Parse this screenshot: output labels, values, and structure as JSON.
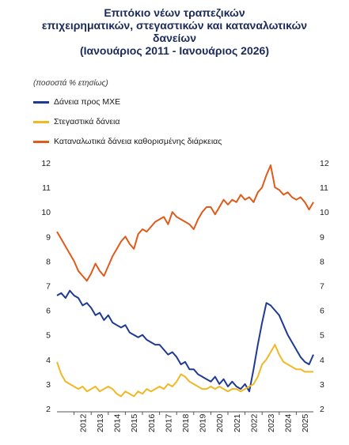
{
  "chart_data": {
    "type": "line",
    "title_lines": [
      "Επιτόκιο νέων τραπεζικών",
      "επιχειρηματικών, στεγαστικών και καταναλωτικών",
      "δανείων",
      "(Ιανουάριος 2011 - Ιανουάριος 2026)"
    ],
    "unit_label": "(ποσοστά % ετησίως)",
    "ylim": [
      2,
      12
    ],
    "yticks": [
      "2",
      "3",
      "4",
      "5",
      "6",
      "7",
      "8",
      "9",
      "10",
      "11",
      "12"
    ],
    "xlim": [
      2011,
      2026
    ],
    "xticks": [
      "2012",
      "2013",
      "2014",
      "2015",
      "2016",
      "2017",
      "2018",
      "2019",
      "2020",
      "2021",
      "2022",
      "2023",
      "2024",
      "2025"
    ],
    "grid": false,
    "legend_position": "top-left",
    "series": [
      {
        "name": "Δάνεια προς ΜΧΕ",
        "color": "#1f3a93",
        "x": [
          2011.0,
          2011.25,
          2011.5,
          2011.75,
          2012.0,
          2012.25,
          2012.5,
          2012.75,
          2013.0,
          2013.25,
          2013.5,
          2013.75,
          2014.0,
          2014.25,
          2014.5,
          2014.75,
          2015.0,
          2015.25,
          2015.5,
          2015.75,
          2016.0,
          2016.25,
          2016.5,
          2016.75,
          2017.0,
          2017.25,
          2017.5,
          2017.75,
          2018.0,
          2018.25,
          2018.5,
          2018.75,
          2019.0,
          2019.25,
          2019.5,
          2019.75,
          2020.0,
          2020.25,
          2020.5,
          2020.75,
          2021.0,
          2021.25,
          2021.5,
          2021.75,
          2022.0,
          2022.25,
          2022.5,
          2022.75,
          2023.0,
          2023.25,
          2023.5,
          2023.75,
          2024.0,
          2024.25,
          2024.5,
          2024.75,
          2025.0,
          2025.25,
          2025.5,
          2025.75,
          2026.0
        ],
        "values": [
          6.6,
          6.7,
          6.5,
          6.8,
          6.6,
          6.5,
          6.2,
          6.3,
          6.1,
          5.8,
          5.9,
          5.6,
          5.8,
          5.5,
          5.4,
          5.3,
          5.4,
          5.1,
          5.0,
          4.9,
          5.0,
          4.8,
          4.7,
          4.6,
          4.6,
          4.4,
          4.2,
          4.3,
          4.1,
          3.8,
          3.9,
          3.6,
          3.6,
          3.4,
          3.3,
          3.2,
          3.1,
          3.3,
          3.0,
          3.2,
          2.9,
          3.1,
          2.9,
          2.8,
          3.0,
          2.7,
          3.6,
          4.6,
          5.5,
          6.3,
          6.2,
          6.0,
          5.8,
          5.4,
          5.0,
          4.7,
          4.4,
          4.1,
          3.9,
          3.8,
          4.2
        ]
      },
      {
        "name": "Στεγαστικά δάνεια",
        "color": "#f0b823",
        "x": [
          2011.0,
          2011.25,
          2011.5,
          2011.75,
          2012.0,
          2012.25,
          2012.5,
          2012.75,
          2013.0,
          2013.25,
          2013.5,
          2013.75,
          2014.0,
          2014.25,
          2014.5,
          2014.75,
          2015.0,
          2015.25,
          2015.5,
          2015.75,
          2016.0,
          2016.25,
          2016.5,
          2016.75,
          2017.0,
          2017.25,
          2017.5,
          2017.75,
          2018.0,
          2018.25,
          2018.5,
          2018.75,
          2019.0,
          2019.25,
          2019.5,
          2019.75,
          2020.0,
          2020.25,
          2020.5,
          2020.75,
          2021.0,
          2021.25,
          2021.5,
          2021.75,
          2022.0,
          2022.25,
          2022.5,
          2022.75,
          2023.0,
          2023.25,
          2023.5,
          2023.75,
          2024.0,
          2024.25,
          2024.5,
          2024.75,
          2025.0,
          2025.25,
          2025.5,
          2025.75,
          2026.0
        ],
        "values": [
          3.9,
          3.4,
          3.1,
          3.0,
          2.9,
          2.8,
          2.9,
          2.7,
          2.8,
          2.9,
          2.7,
          2.8,
          2.9,
          2.8,
          2.6,
          2.5,
          2.7,
          2.6,
          2.5,
          2.7,
          2.6,
          2.8,
          2.7,
          2.8,
          2.9,
          2.8,
          3.0,
          2.9,
          3.1,
          3.4,
          3.3,
          3.1,
          3.0,
          2.9,
          2.8,
          2.8,
          2.9,
          2.8,
          2.9,
          2.8,
          2.7,
          2.8,
          2.8,
          2.7,
          2.8,
          2.9,
          3.0,
          3.3,
          3.8,
          4.0,
          4.3,
          4.6,
          4.2,
          3.9,
          3.8,
          3.7,
          3.6,
          3.6,
          3.5,
          3.5,
          3.5
        ]
      },
      {
        "name": "Καταναλωτικά δάνεια καθορισμένης διάρκειας",
        "color": "#e05a1a",
        "x": [
          2011.0,
          2011.25,
          2011.5,
          2011.75,
          2012.0,
          2012.25,
          2012.5,
          2012.75,
          2013.0,
          2013.25,
          2013.5,
          2013.75,
          2014.0,
          2014.25,
          2014.5,
          2014.75,
          2015.0,
          2015.25,
          2015.5,
          2015.75,
          2016.0,
          2016.25,
          2016.5,
          2016.75,
          2017.0,
          2017.25,
          2017.5,
          2017.75,
          2018.0,
          2018.25,
          2018.5,
          2018.75,
          2019.0,
          2019.25,
          2019.5,
          2019.75,
          2020.0,
          2020.25,
          2020.5,
          2020.75,
          2021.0,
          2021.25,
          2021.5,
          2021.75,
          2022.0,
          2022.25,
          2022.5,
          2022.75,
          2023.0,
          2023.25,
          2023.5,
          2023.75,
          2024.0,
          2024.25,
          2024.5,
          2024.75,
          2025.0,
          2025.25,
          2025.5,
          2025.75,
          2026.0
        ],
        "values": [
          9.2,
          8.9,
          8.6,
          8.3,
          8.0,
          7.6,
          7.4,
          7.2,
          7.5,
          7.9,
          7.6,
          7.4,
          7.8,
          8.2,
          8.5,
          8.8,
          9.0,
          8.7,
          8.5,
          9.1,
          9.3,
          9.2,
          9.4,
          9.6,
          9.7,
          9.8,
          9.5,
          10.0,
          9.8,
          9.7,
          9.6,
          9.5,
          9.3,
          9.7,
          10.0,
          10.2,
          10.2,
          9.9,
          10.2,
          10.5,
          10.3,
          10.5,
          10.4,
          10.7,
          10.5,
          10.6,
          10.4,
          10.8,
          11.0,
          11.5,
          11.9,
          11.0,
          10.9,
          10.7,
          10.8,
          10.6,
          10.5,
          10.6,
          10.4,
          10.1,
          10.4
        ]
      }
    ]
  }
}
